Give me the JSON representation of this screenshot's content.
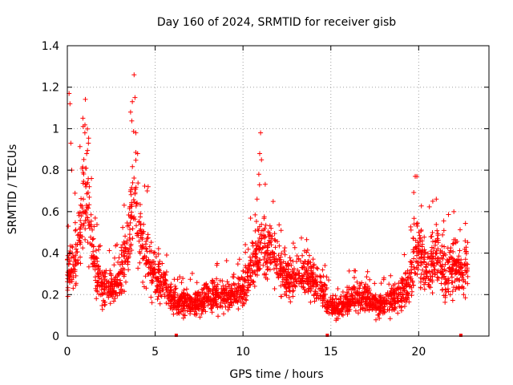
{
  "chart_data": {
    "type": "scatter",
    "title": "Day 160 of 2024, SRMTID for receiver gisb",
    "xlabel": "GPS time / hours",
    "ylabel": "SRMTID / TECUs",
    "xlim": [
      0,
      24
    ],
    "ylim": [
      0,
      1.4
    ],
    "x_ticks": [
      0,
      5,
      10,
      15,
      20
    ],
    "x_tick_labels": [
      "0",
      "5",
      "10",
      "15",
      "20"
    ],
    "y_ticks": [
      0,
      0.2,
      0.4,
      0.6,
      0.8,
      1.0,
      1.2,
      1.4
    ],
    "y_tick_labels": [
      "0",
      "0.2",
      "0.4",
      "0.6",
      "0.8",
      "1",
      "1.2",
      "1.4"
    ],
    "grid": true,
    "marker": "+",
    "series_color": "#ff0000",
    "baseline_markers_x": [
      6.2,
      14.8,
      22.4
    ],
    "trend": [
      [
        0.0,
        0.3
      ],
      [
        0.3,
        0.32
      ],
      [
        0.6,
        0.45
      ],
      [
        0.9,
        0.62
      ],
      [
        1.1,
        0.7
      ],
      [
        1.3,
        0.55
      ],
      [
        1.6,
        0.32
      ],
      [
        2.0,
        0.22
      ],
      [
        2.5,
        0.22
      ],
      [
        3.0,
        0.28
      ],
      [
        3.5,
        0.45
      ],
      [
        3.8,
        0.7
      ],
      [
        4.1,
        0.45
      ],
      [
        4.5,
        0.38
      ],
      [
        5.0,
        0.3
      ],
      [
        5.5,
        0.24
      ],
      [
        6.0,
        0.17
      ],
      [
        6.5,
        0.15
      ],
      [
        7.0,
        0.16
      ],
      [
        7.5,
        0.16
      ],
      [
        8.0,
        0.19
      ],
      [
        8.5,
        0.2
      ],
      [
        9.0,
        0.19
      ],
      [
        9.5,
        0.2
      ],
      [
        10.0,
        0.22
      ],
      [
        10.5,
        0.33
      ],
      [
        11.0,
        0.45
      ],
      [
        11.5,
        0.38
      ],
      [
        12.0,
        0.32
      ],
      [
        12.5,
        0.28
      ],
      [
        13.0,
        0.3
      ],
      [
        13.5,
        0.29
      ],
      [
        14.0,
        0.28
      ],
      [
        14.5,
        0.22
      ],
      [
        15.0,
        0.14
      ],
      [
        15.5,
        0.14
      ],
      [
        16.0,
        0.17
      ],
      [
        16.5,
        0.19
      ],
      [
        17.0,
        0.18
      ],
      [
        17.5,
        0.16
      ],
      [
        18.0,
        0.15
      ],
      [
        18.5,
        0.17
      ],
      [
        19.0,
        0.2
      ],
      [
        19.5,
        0.26
      ],
      [
        19.9,
        0.45
      ],
      [
        20.2,
        0.38
      ],
      [
        20.5,
        0.32
      ],
      [
        21.0,
        0.4
      ],
      [
        21.5,
        0.3
      ],
      [
        22.0,
        0.33
      ],
      [
        22.5,
        0.3
      ],
      [
        22.8,
        0.34
      ]
    ],
    "highlights": [
      [
        0.05,
        0.53
      ],
      [
        0.1,
        1.17
      ],
      [
        0.15,
        1.12
      ],
      [
        0.2,
        0.93
      ],
      [
        0.25,
        0.8
      ],
      [
        0.9,
        1.01
      ],
      [
        1.0,
        0.98
      ],
      [
        1.2,
        0.93
      ],
      [
        1.1,
        0.88
      ],
      [
        3.6,
        1.08
      ],
      [
        3.7,
        1.13
      ],
      [
        3.8,
        1.26
      ],
      [
        3.85,
        1.15
      ],
      [
        3.9,
        0.98
      ],
      [
        4.0,
        0.88
      ],
      [
        4.6,
        0.72
      ],
      [
        4.55,
        0.7
      ],
      [
        11.0,
        0.98
      ],
      [
        10.95,
        0.88
      ],
      [
        11.05,
        0.85
      ],
      [
        10.9,
        0.78
      ],
      [
        10.8,
        0.66
      ],
      [
        19.8,
        0.77
      ],
      [
        19.9,
        0.77
      ],
      [
        21.0,
        0.66
      ],
      [
        20.8,
        0.65
      ],
      [
        22.0,
        0.6
      ]
    ],
    "points_count": 2600,
    "seed": 160
  }
}
